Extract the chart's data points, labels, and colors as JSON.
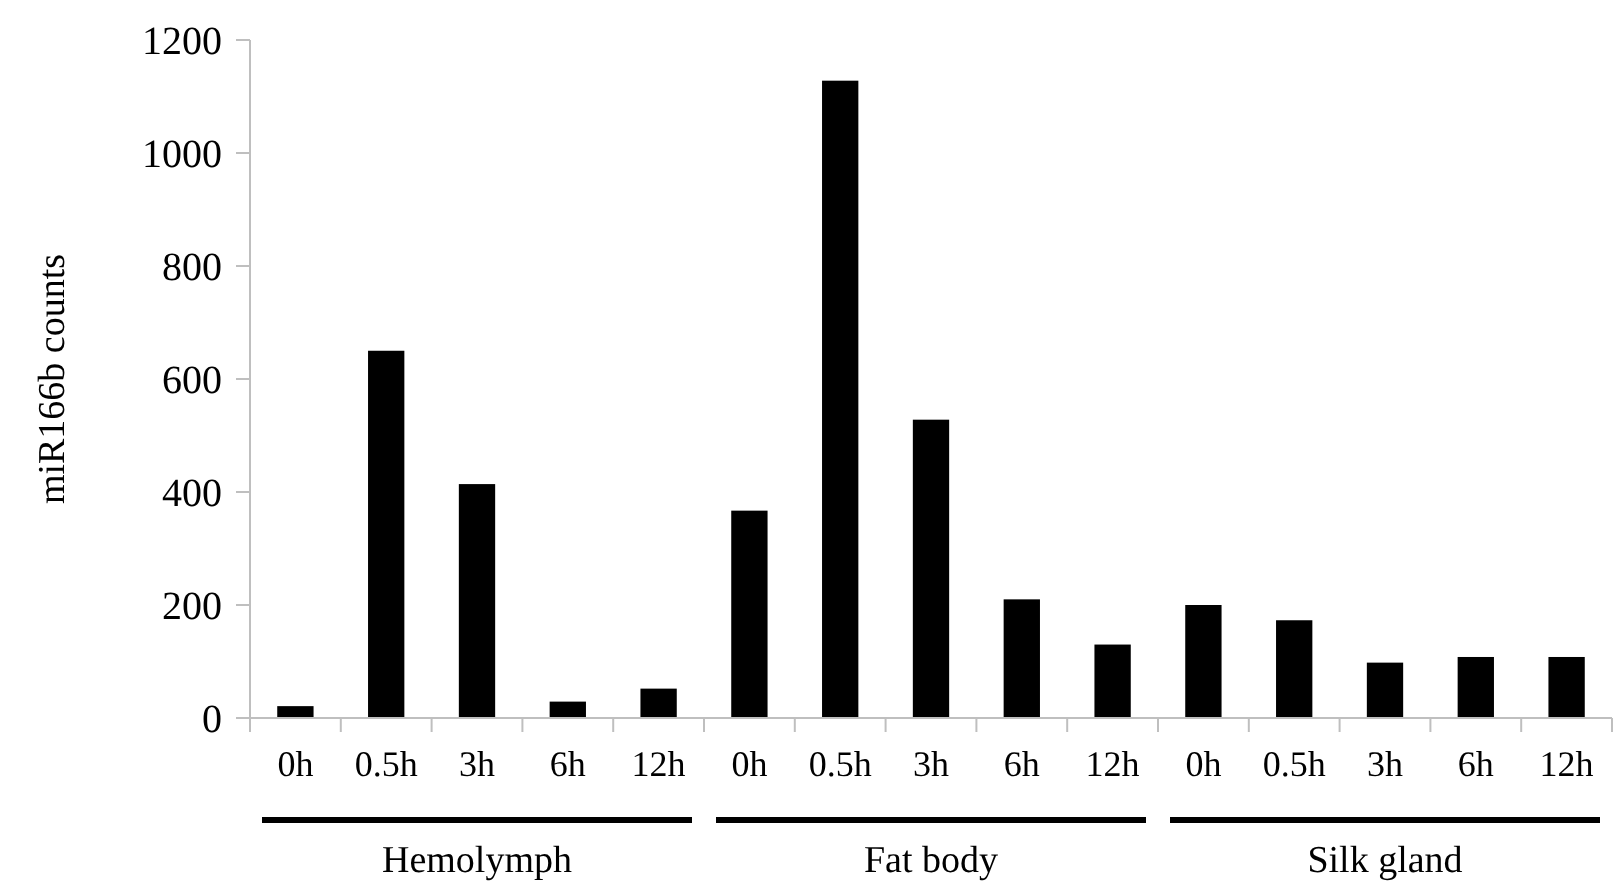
{
  "chart_data": {
    "type": "bar",
    "ylabel": "miR166b counts",
    "categories": [
      "0h",
      "0.5h",
      "3h",
      "6h",
      "12h",
      "0h",
      "0.5h",
      "3h",
      "6h",
      "12h",
      "0h",
      "0.5h",
      "3h",
      "6h",
      "12h"
    ],
    "values": [
      21,
      650,
      414,
      29,
      52,
      367,
      1128,
      528,
      210,
      130,
      200,
      173,
      98,
      108,
      108
    ],
    "color": "#000000",
    "ylim": [
      0,
      1200
    ],
    "yticks": [
      0,
      200,
      400,
      600,
      800,
      1000,
      1200
    ],
    "grid": false,
    "annotations": [
      "Hemolymph",
      "Fat body",
      "Silk gland"
    ]
  }
}
